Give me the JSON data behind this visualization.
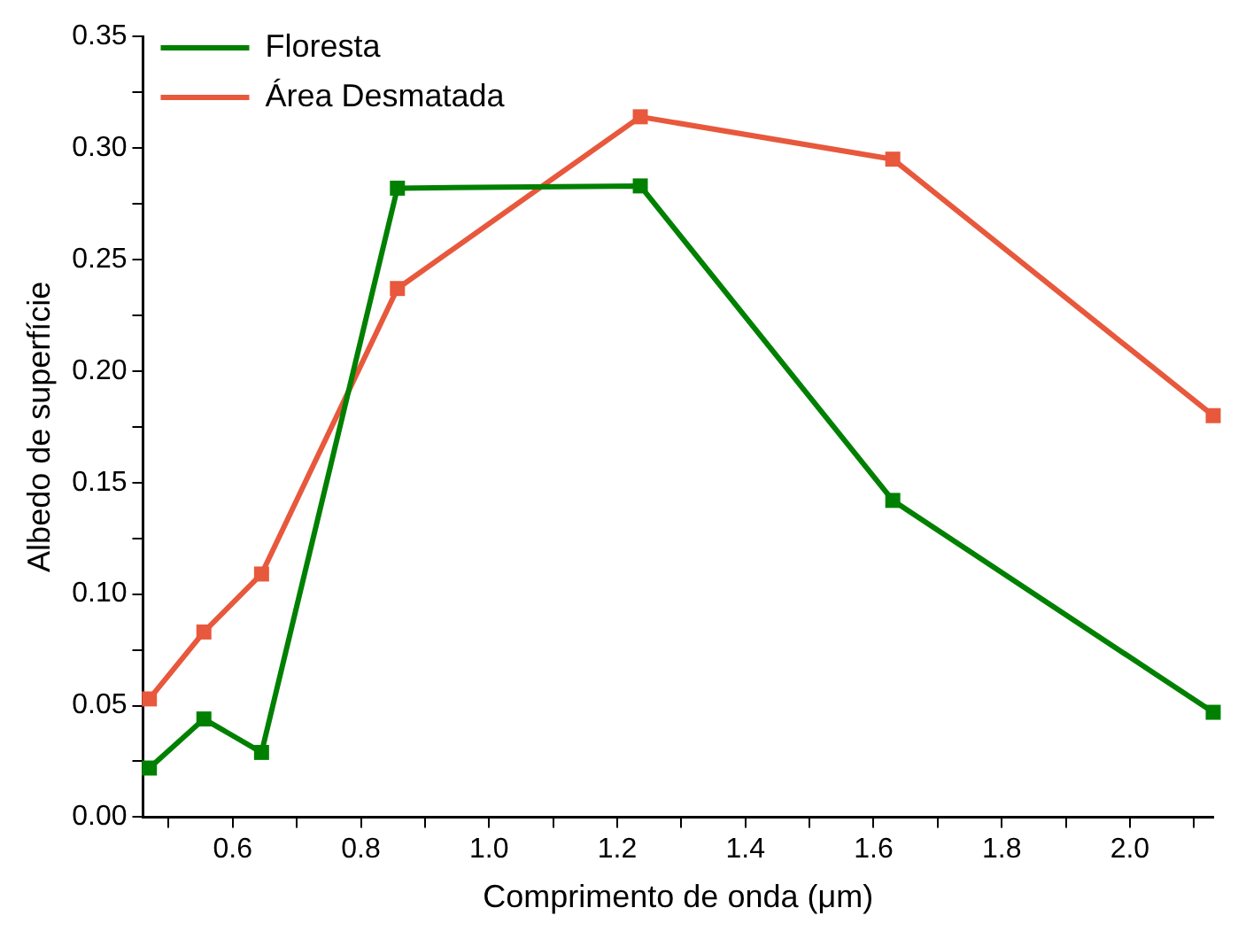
{
  "chart_data": {
    "type": "line",
    "xlabel": "Comprimento de onda (μm)",
    "ylabel": "Albedo de superfície",
    "xlim": [
      0.46,
      2.13
    ],
    "xticks": [
      {
        "value": 0.5,
        "label": null
      },
      0.6,
      {
        "value": 0.7,
        "label": null
      },
      0.8,
      {
        "value": 0.9,
        "label": null
      },
      {
        "value": 1,
        "label": "1.0"
      },
      {
        "value": 1.1,
        "label": null
      },
      1.2,
      {
        "value": 1.3,
        "label": null
      },
      1.4,
      {
        "value": 1.5,
        "label": null
      },
      1.6,
      {
        "value": 1.7,
        "label": null
      },
      1.8,
      {
        "value": 1.9,
        "label": null
      },
      {
        "value": 2,
        "label": "2.0"
      },
      {
        "value": 2.1,
        "label": null
      }
    ],
    "ylim": [
      0,
      0.35
    ],
    "yticks": [
      {
        "value": 0,
        "label": "0.00"
      },
      {
        "value": 0.025,
        "label": null
      },
      0.05,
      {
        "value": 0.075,
        "label": null
      },
      {
        "value": 0.1,
        "label": "0.10"
      },
      {
        "value": 0.125,
        "label": null
      },
      0.15,
      {
        "value": 0.175,
        "label": null
      },
      {
        "value": 0.2,
        "label": "0.20"
      },
      {
        "value": 0.225,
        "label": null
      },
      0.25,
      {
        "value": 0.275,
        "label": null
      },
      {
        "value": 0.3,
        "label": "0.30"
      },
      {
        "value": 0.325,
        "label": null
      },
      0.35
    ],
    "x": [
      0.47,
      0.555,
      0.645,
      0.857,
      1.236,
      1.63,
      2.13
    ],
    "series": [
      {
        "name": "Floresta",
        "color": "#008000",
        "values": [
          0.022,
          0.044,
          0.029,
          0.282,
          0.283,
          0.142,
          0.047
        ]
      },
      {
        "name": "Área Desmatada",
        "color": "#e8583c",
        "values": [
          0.053,
          0.083,
          0.109,
          0.237,
          0.314,
          0.295,
          0.18
        ]
      }
    ],
    "grid": false,
    "legend": "top left",
    "marker": "square",
    "line_style": "solid"
  }
}
